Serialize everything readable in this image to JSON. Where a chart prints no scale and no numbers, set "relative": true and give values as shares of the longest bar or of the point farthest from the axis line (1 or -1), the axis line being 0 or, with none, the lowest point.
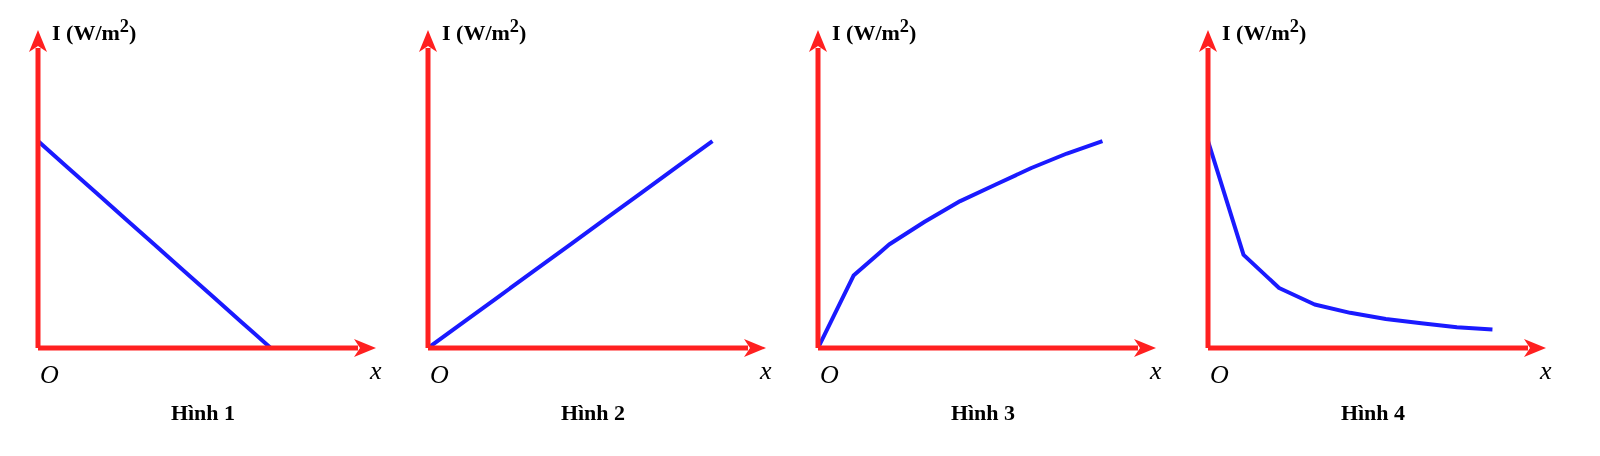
{
  "chart_data": [
    {
      "type": "line",
      "title": "Hình 1",
      "xlabel": "x",
      "ylabel": "I (W/m$^{2}$)",
      "annotations": [
        "O"
      ],
      "relative": true,
      "marker": "none",
      "line_style": "solid",
      "categories": [
        null,
        null,
        null,
        null,
        null,
        null,
        null,
        null,
        null,
        null,
        null,
        null
      ],
      "series": [
        {
          "color": "#1a1aff",
          "values": [
            1,
            0.875,
            0.75,
            0.625,
            0.5,
            0.375,
            0.25,
            0.125,
            0,
            null,
            null,
            null
          ]
        }
      ]
    },
    {
      "type": "line",
      "title": "Hình 2",
      "xlabel": "x",
      "ylabel": "I (W/m$^{2}$)",
      "annotations": [
        "O"
      ],
      "relative": true,
      "marker": "none",
      "line_style": "solid",
      "categories": [
        null,
        null,
        null,
        null,
        null,
        null,
        null,
        null,
        null,
        null
      ],
      "series": [
        {
          "color": "#1a1aff",
          "values": [
            0,
            0.125,
            0.25,
            0.375,
            0.5,
            0.625,
            0.75,
            0.875,
            1,
            null
          ]
        }
      ]
    },
    {
      "type": "line",
      "title": "Hình 3",
      "xlabel": "x",
      "ylabel": "I (W/m$^{2}$)",
      "annotations": [
        "O"
      ],
      "relative": true,
      "marker": "none",
      "line_style": "solid",
      "categories": [
        null,
        null,
        null,
        null,
        null,
        null,
        null,
        null,
        null,
        null
      ],
      "series": [
        {
          "color": "#1a1aff",
          "values": [
            0,
            0.35,
            0.5,
            0.61,
            0.71,
            0.79,
            0.87,
            0.94,
            1,
            null
          ]
        }
      ]
    },
    {
      "type": "line",
      "title": "Hình 4",
      "xlabel": "x",
      "ylabel": "I (W/m$^{2}$)",
      "annotations": [
        "O"
      ],
      "relative": true,
      "marker": "none",
      "line_style": "solid",
      "categories": [
        null,
        null,
        null,
        null,
        null,
        null,
        null,
        null,
        null,
        null
      ],
      "series": [
        {
          "color": "#1a1aff",
          "values": [
            1,
            0.45,
            0.29,
            0.21,
            0.17,
            0.14,
            0.12,
            0.1,
            0.09,
            null
          ]
        }
      ]
    }
  ]
}
